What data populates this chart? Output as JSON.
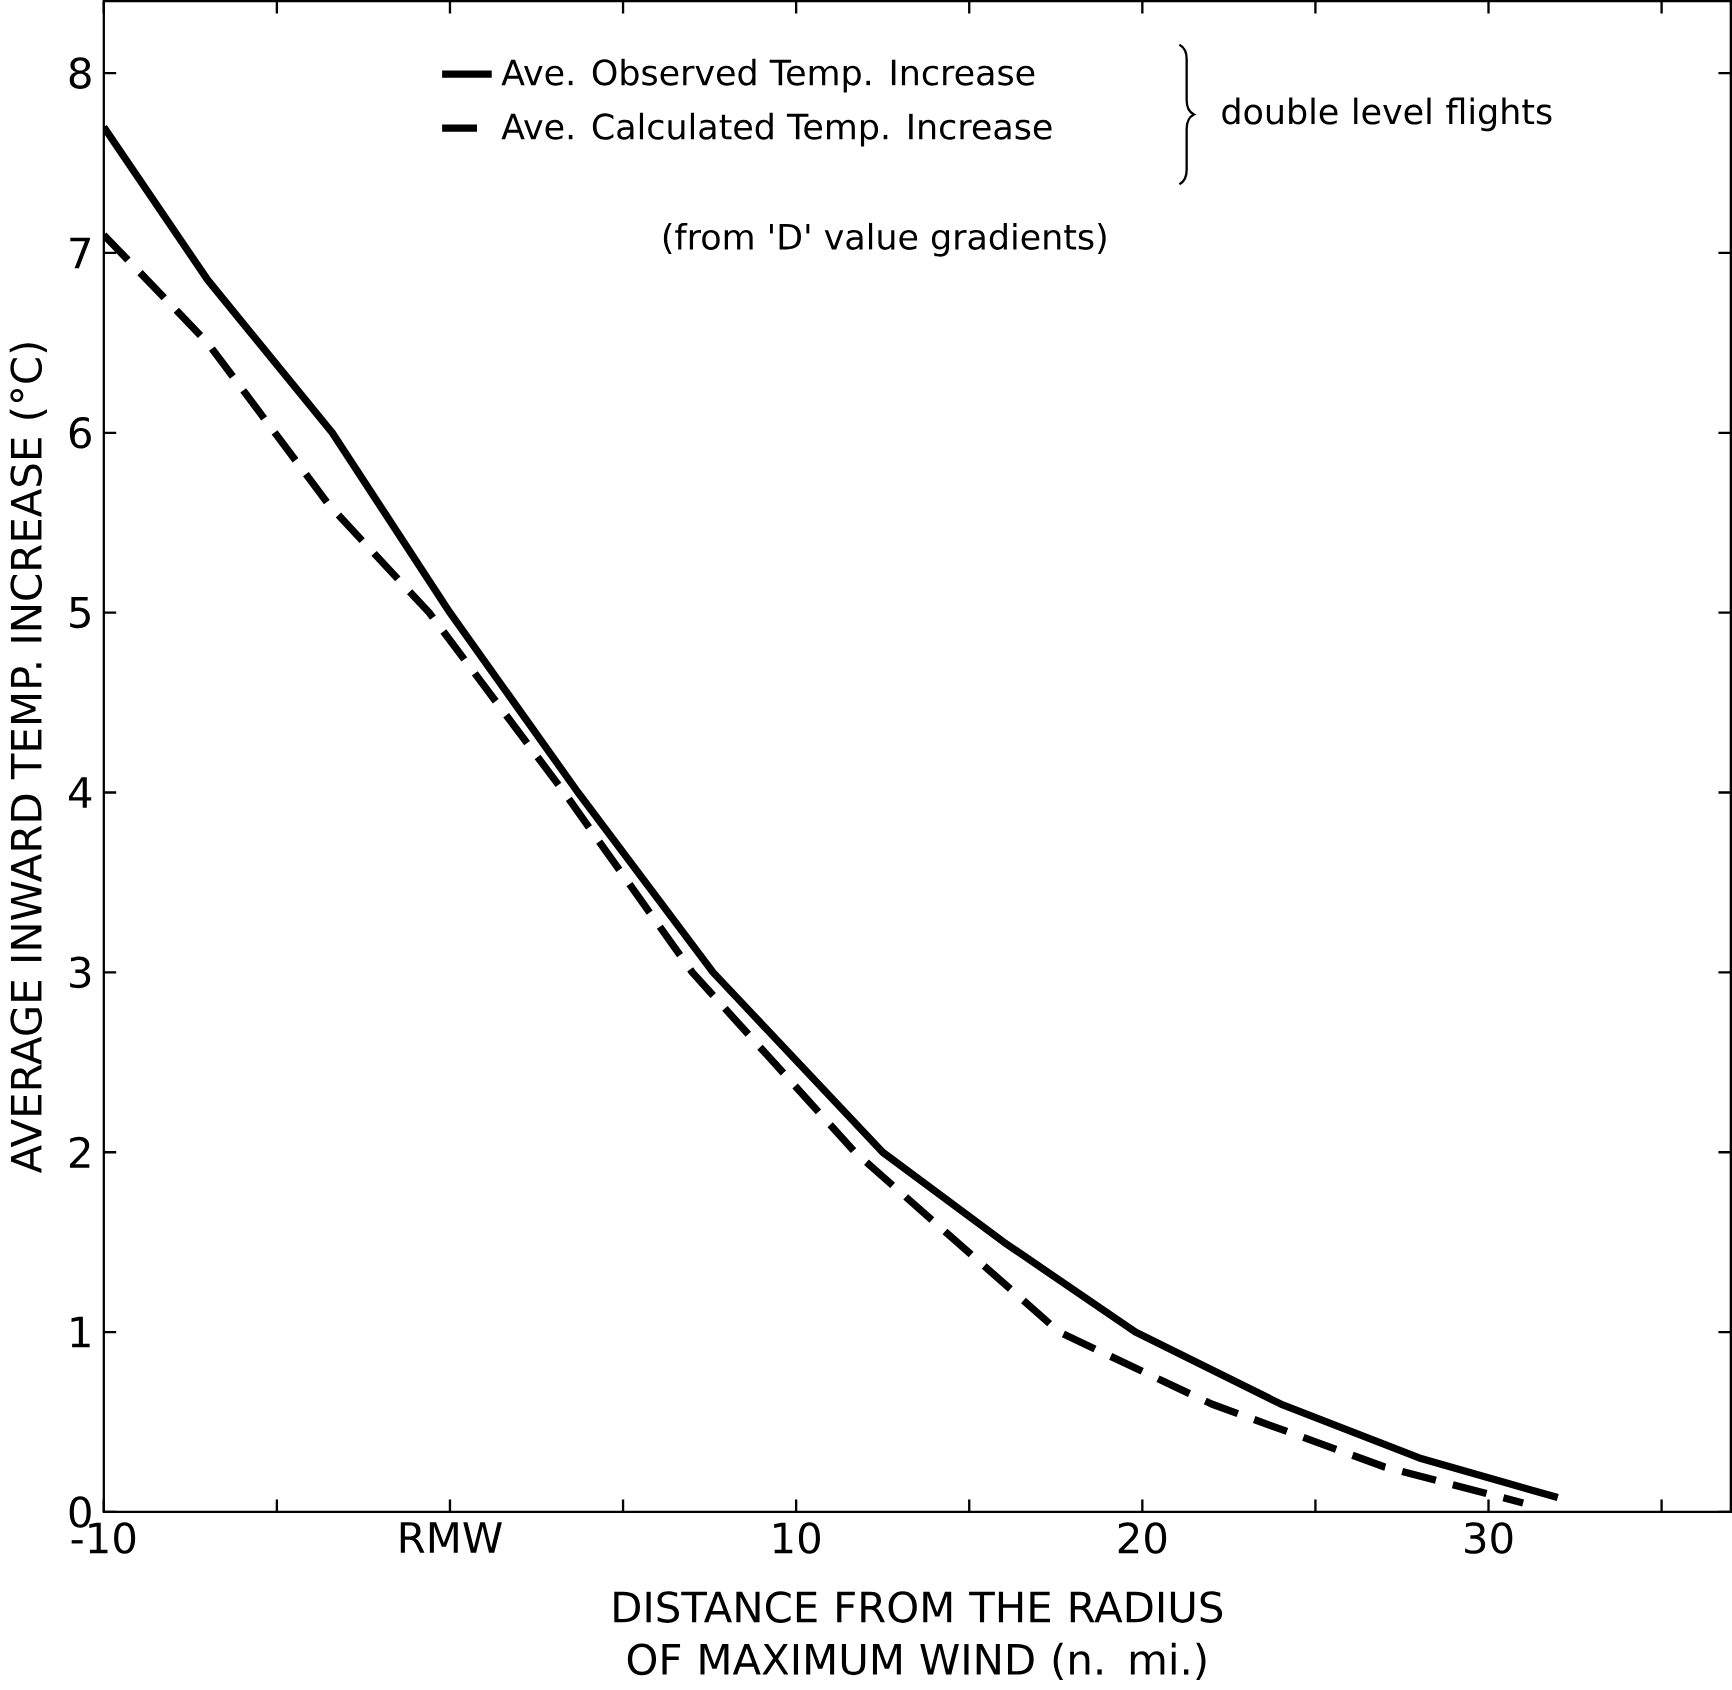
{
  "chart_data": {
    "type": "line",
    "xlabel": "DISTANCE FROM THE RADIUS OF MAXIMUM WIND (n. mi.)",
    "ylabel": "AVERAGE INWARD TEMP. INCREASE (°C)",
    "xlim": [
      -10,
      37
    ],
    "ylim": [
      0,
      8.4
    ],
    "xticks": [
      -10,
      {
        "value": -5,
        "label": null
      },
      {
        "value": 0,
        "label": "RMW"
      },
      {
        "value": 5,
        "label": null
      },
      10,
      {
        "value": 15,
        "label": null
      },
      20,
      {
        "value": 25,
        "label": null
      },
      30,
      {
        "value": 35,
        "label": null
      }
    ],
    "yticks": [
      0,
      1,
      2,
      3,
      4,
      5,
      6,
      7,
      8
    ],
    "grid": false,
    "legend": "top",
    "marker": "none",
    "series": [
      {
        "name": "Ave. Observed Temp. Increase",
        "color": "#000000",
        "line_style": "solid",
        "x": [
          -10,
          -7,
          -3.4,
          0,
          3.7,
          7.6,
          12.5,
          16,
          19.8,
          24,
          28,
          32
        ],
        "values": [
          7.7,
          6.85,
          6,
          5,
          4,
          3,
          2,
          1.5,
          1,
          0.6,
          0.3,
          0.08
        ]
      },
      {
        "name": "Ave. Calculated Temp. Increase",
        "color": "#000000",
        "line_style": "dashed",
        "x": [
          -10,
          -7,
          -3.5,
          -0.6,
          3.3,
          7,
          11.7,
          17.6,
          22,
          27,
          31
        ],
        "values": [
          7.1,
          6.5,
          5.6,
          5,
          4,
          3,
          2,
          1,
          0.6,
          0.25,
          0.05
        ]
      }
    ],
    "annotations": [
      "double level flights",
      "(from 'D' value gradients)"
    ]
  }
}
